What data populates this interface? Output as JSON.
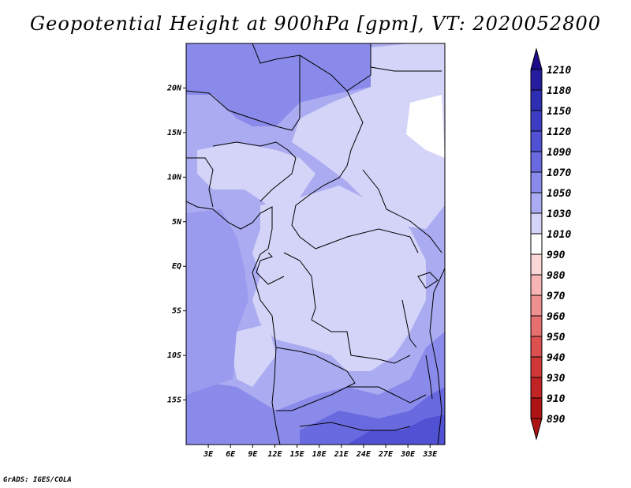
{
  "chart_data": {
    "type": "heatmap",
    "title": "Geopotential Height at 900hPa [gpm], VT: 2020052800",
    "variable": "Geopotential Height",
    "level": "900hPa",
    "units": "gpm",
    "valid_time": "2020052800",
    "x_range": [
      0,
      35
    ],
    "y_range": [
      -20,
      25
    ],
    "x_ticks": [
      {
        "value": 3,
        "label": "3E"
      },
      {
        "value": 6,
        "label": "6E"
      },
      {
        "value": 9,
        "label": "9E"
      },
      {
        "value": 12,
        "label": "12E"
      },
      {
        "value": 15,
        "label": "15E"
      },
      {
        "value": 18,
        "label": "18E"
      },
      {
        "value": 21,
        "label": "21E"
      },
      {
        "value": 24,
        "label": "24E"
      },
      {
        "value": 27,
        "label": "27E"
      },
      {
        "value": 30,
        "label": "30E"
      },
      {
        "value": 33,
        "label": "33E"
      }
    ],
    "y_ticks": [
      {
        "value": 20,
        "label": "20N"
      },
      {
        "value": 15,
        "label": "15N"
      },
      {
        "value": 10,
        "label": "10N"
      },
      {
        "value": 5,
        "label": "5N"
      },
      {
        "value": 0,
        "label": "EQ"
      },
      {
        "value": -5,
        "label": "5S"
      },
      {
        "value": -10,
        "label": "10S"
      },
      {
        "value": -15,
        "label": "15S"
      }
    ],
    "colorbar": {
      "levels": [
        1210,
        1180,
        1150,
        1120,
        1090,
        1070,
        1050,
        1030,
        1010,
        990,
        980,
        970,
        960,
        950,
        940,
        930,
        910,
        890
      ],
      "colors": [
        "#1e0b8a",
        "#261c9e",
        "#2e2eb2",
        "#3d3dc4",
        "#5151d4",
        "#6a6ae0",
        "#8a8aea",
        "#ababf2",
        "#d4d4f8",
        "#ffffff",
        "#fbd6d6",
        "#f6b4b4",
        "#ee9090",
        "#e67070",
        "#dd5050",
        "#d03838",
        "#c02424",
        "#ad1414"
      ],
      "top_cap": "#1e0b8a",
      "bottom_cap": "#ad1414"
    },
    "field": {
      "approx_range_gpm": [
        1010,
        1090
      ],
      "description": "lowest heights over the central Congo basin, higher toward the Sahel and southern Africa"
    }
  },
  "footer": "GrADS: IGES/COLA"
}
